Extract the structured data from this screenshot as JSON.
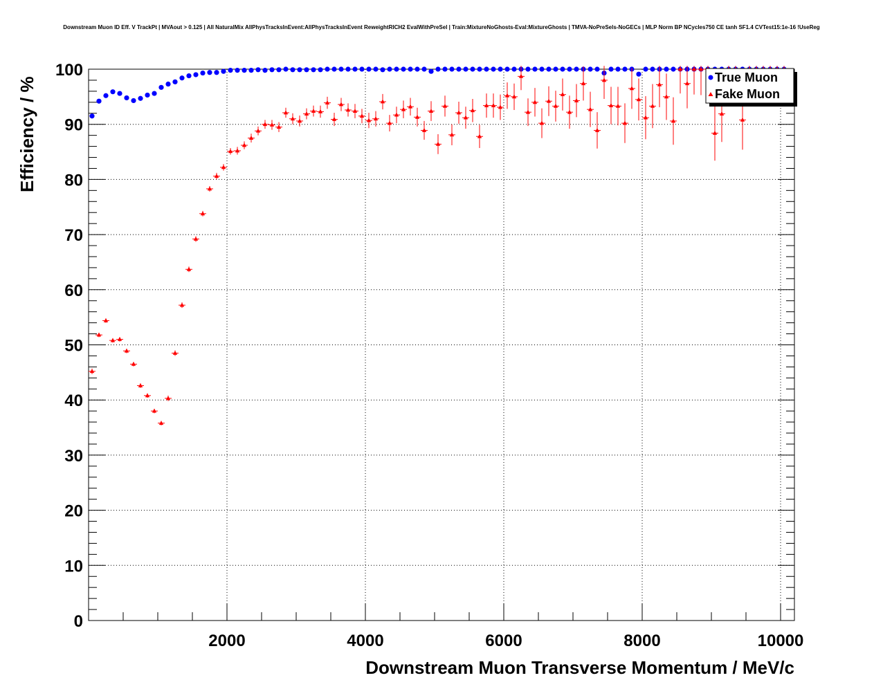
{
  "chart_data": {
    "type": "scatter",
    "title": "Downstream Muon ID Eff. V TrackPt | MVAout > 0.125 | All NaturalMix AllPhysTracksInEvent:AllPhysTracksInEvent ReweightRICH2 EvalWithPreSel | Train:MixtureNoGhosts-Eval:MixtureGhosts | TMVA-NoPreSels-NoGECs | MLP Norm BP NCycles750 CE tanh SF1.4 CVTest15:1e-16 !UseReg",
    "xlabel": "Downstream Muon Transverse Momentum / MeV/c",
    "ylabel": "Efficiency / %",
    "xlim": [
      0,
      10200
    ],
    "ylim": [
      0,
      100
    ],
    "x_ticks": [
      2000,
      4000,
      6000,
      8000,
      10000
    ],
    "y_ticks": [
      0,
      10,
      20,
      30,
      40,
      50,
      60,
      70,
      80,
      90,
      100
    ],
    "grid": true,
    "legend_position": "top-right",
    "series": [
      {
        "name": "True Muon",
        "color": "#0000ff",
        "marker": "circle",
        "x": [
          50,
          150,
          250,
          350,
          450,
          550,
          650,
          750,
          850,
          950,
          1050,
          1150,
          1250,
          1350,
          1450,
          1550,
          1650,
          1750,
          1850,
          1950,
          2050,
          2150,
          2250,
          2350,
          2450,
          2550,
          2650,
          2750,
          2850,
          2950,
          3050,
          3150,
          3250,
          3350,
          3450,
          3550,
          3650,
          3750,
          3850,
          3950,
          4050,
          4150,
          4250,
          4350,
          4450,
          4550,
          4650,
          4750,
          4850,
          4950,
          5050,
          5150,
          5250,
          5350,
          5450,
          5550,
          5650,
          5750,
          5850,
          5950,
          6050,
          6150,
          6250,
          6350,
          6450,
          6550,
          6650,
          6750,
          6850,
          6950,
          7050,
          7150,
          7250,
          7350,
          7450,
          7550,
          7650,
          7750,
          7850,
          7950,
          8050,
          8150,
          8250,
          8350,
          8450,
          8550,
          8650,
          8750,
          8850,
          8950,
          9050,
          9150,
          9250,
          9350,
          9450,
          9550,
          9650,
          9750,
          9850,
          9950,
          10050
        ],
        "y": [
          91.5,
          94.2,
          95.2,
          95.9,
          95.6,
          94.8,
          94.3,
          94.7,
          95.3,
          95.6,
          96.7,
          97.3,
          97.7,
          98.4,
          98.8,
          99.0,
          99.3,
          99.4,
          99.4,
          99.6,
          99.8,
          99.8,
          99.8,
          99.8,
          99.9,
          99.8,
          99.9,
          99.9,
          100,
          99.9,
          99.9,
          99.9,
          99.9,
          99.9,
          100,
          100,
          100,
          100,
          100,
          100,
          100,
          100,
          99.9,
          100,
          100,
          100,
          100,
          100,
          100,
          99.6,
          100,
          100,
          100,
          100,
          100,
          100,
          100,
          100,
          100,
          100,
          100,
          100,
          100,
          100,
          100,
          100,
          100,
          100,
          100,
          100,
          100,
          100,
          100,
          100,
          99.3,
          100,
          100,
          100,
          100,
          99.1,
          100,
          100,
          100,
          100,
          100,
          100,
          100,
          100,
          100,
          100,
          100,
          100,
          100,
          100,
          100,
          100,
          100,
          100,
          100,
          100,
          100
        ]
      },
      {
        "name": "Fake Muon",
        "color": "#ff0000",
        "marker": "triangle",
        "x": [
          50,
          150,
          250,
          350,
          450,
          550,
          650,
          750,
          850,
          950,
          1050,
          1150,
          1250,
          1350,
          1450,
          1550,
          1650,
          1750,
          1850,
          1950,
          2050,
          2150,
          2250,
          2350,
          2450,
          2550,
          2650,
          2750,
          2850,
          2950,
          3050,
          3150,
          3250,
          3350,
          3450,
          3550,
          3650,
          3750,
          3850,
          3950,
          4050,
          4150,
          4250,
          4350,
          4450,
          4550,
          4650,
          4750,
          4850,
          4950,
          5050,
          5150,
          5250,
          5350,
          5450,
          5550,
          5650,
          5750,
          5850,
          5950,
          6050,
          6150,
          6250,
          6350,
          6450,
          6550,
          6650,
          6750,
          6850,
          6950,
          7050,
          7150,
          7250,
          7350,
          7450,
          7550,
          7650,
          7750,
          7850,
          7950,
          8050,
          8150,
          8250,
          8350,
          8450,
          8550,
          8650,
          8750,
          8850,
          8950,
          9050,
          9150,
          9250,
          9350,
          9450,
          9550,
          9650,
          9750,
          9850,
          9950,
          10050
        ],
        "y": [
          45.2,
          51.8,
          54.4,
          50.8,
          51.0,
          48.9,
          46.5,
          42.6,
          40.8,
          38.0,
          35.8,
          40.3,
          48.5,
          57.2,
          63.7,
          69.2,
          73.8,
          78.3,
          80.6,
          82.2,
          85.1,
          85.2,
          86.2,
          87.5,
          88.8,
          90.0,
          89.9,
          89.5,
          92.1,
          91.0,
          90.6,
          91.9,
          92.4,
          92.3,
          93.9,
          90.9,
          93.6,
          92.6,
          92.4,
          91.5,
          90.7,
          91.0,
          94.1,
          90.2,
          91.7,
          92.7,
          93.2,
          91.3,
          88.9,
          92.4,
          86.4,
          93.3,
          88.1,
          92.1,
          91.2,
          92.5,
          87.8,
          93.4,
          93.4,
          93.1,
          95.2,
          95.0,
          98.7,
          92.2,
          94.0,
          90.2,
          94.2,
          93.3,
          95.4,
          92.2,
          94.3,
          97.4,
          92.7,
          88.9,
          98.0,
          93.4,
          93.3,
          90.2,
          96.5,
          94.5,
          91.2,
          93.3,
          97.2,
          95.0,
          90.6,
          100,
          97.4,
          100,
          100,
          100,
          88.4,
          91.9,
          100,
          100,
          90.8,
          100,
          100,
          100,
          100,
          100,
          100
        ],
        "yerr": [
          0.5,
          0.4,
          0.4,
          0.4,
          0.4,
          0.4,
          0.4,
          0.4,
          0.4,
          0.4,
          0.4,
          0.5,
          0.5,
          0.5,
          0.5,
          0.5,
          0.5,
          0.5,
          0.6,
          0.6,
          0.6,
          0.7,
          0.7,
          0.8,
          0.8,
          0.8,
          0.9,
          0.9,
          0.9,
          1.0,
          1.0,
          1.0,
          1.0,
          1.1,
          1.1,
          1.2,
          1.2,
          1.2,
          1.3,
          1.3,
          1.4,
          1.4,
          1.4,
          1.5,
          1.5,
          1.6,
          1.6,
          1.7,
          1.7,
          1.8,
          1.8,
          1.9,
          1.9,
          2.0,
          2.0,
          2.1,
          2.1,
          2.2,
          2.2,
          2.3,
          2.4,
          2.4,
          2.5,
          2.5,
          2.6,
          2.7,
          2.7,
          2.8,
          2.9,
          3.0,
          3.0,
          3.1,
          3.2,
          3.3,
          3.4,
          3.4,
          3.5,
          3.6,
          3.7,
          3.8,
          3.9,
          4.0,
          4.1,
          4.2,
          4.3,
          4.4,
          4.5,
          4.6,
          4.7,
          4.8,
          5.0,
          5.1,
          5.2,
          5.3,
          5.4,
          5.5,
          5.6,
          5.7,
          5.8,
          5.9,
          6.0
        ]
      }
    ]
  }
}
